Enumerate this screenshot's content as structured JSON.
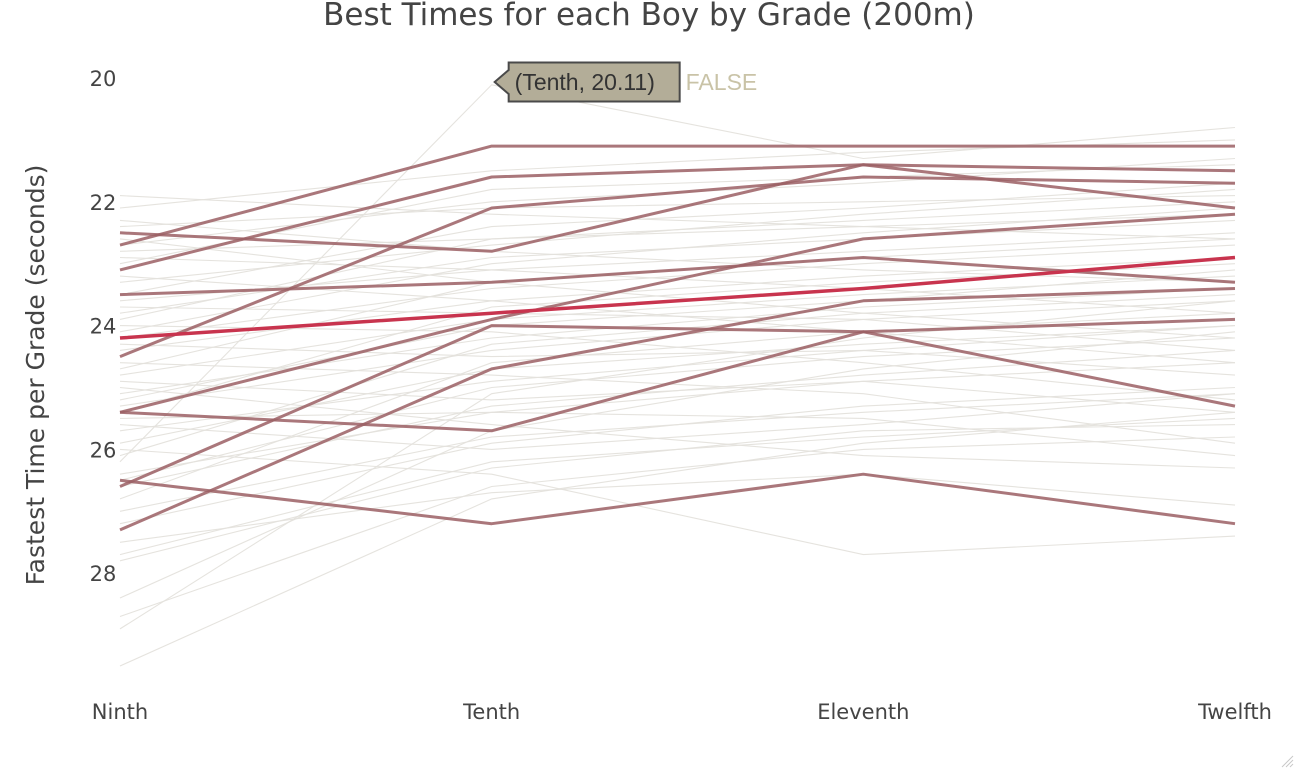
{
  "colors": {
    "background": "#ffffff",
    "background_lines": "#e4e2dc",
    "highlight_lines": "#9b5f64",
    "focus_line": "#c8344e",
    "tooltip_bg": "#b3ad98",
    "tooltip_border": "#4a4a4a",
    "tooltip_extra_text": "#c9c3a7"
  },
  "tooltip": {
    "label": "(Tenth, 20.11)",
    "extra": "FALSE",
    "point": {
      "x": "Tenth",
      "y": 20.11
    }
  },
  "chart_data": {
    "type": "line",
    "title": "Best Times for each Boy by Grade (200m)",
    "xlabel": "",
    "ylabel": "Fastest Time per Grade (seconds)",
    "categories": [
      "Ninth",
      "Tenth",
      "Eleventh",
      "Twelfth"
    ],
    "y_ticks": [
      20,
      22,
      24,
      26,
      28
    ],
    "ylim": [
      19.7,
      30.0
    ],
    "y_reversed": true,
    "grid": false,
    "legend": "none",
    "background_series": [
      [
        22.4,
        22.1,
        22.0,
        21.9
      ],
      [
        23.0,
        21.8,
        21.6,
        21.4
      ],
      [
        26.2,
        20.11,
        21.3,
        20.8
      ],
      [
        21.9,
        22.2,
        22.4,
        22.6
      ],
      [
        22.8,
        22.6,
        22.3,
        22.0
      ],
      [
        23.6,
        23.1,
        22.8,
        22.5
      ],
      [
        24.2,
        23.4,
        23.0,
        22.7
      ],
      [
        24.8,
        23.9,
        23.5,
        23.2
      ],
      [
        25.3,
        24.4,
        23.9,
        23.6
      ],
      [
        25.9,
        24.7,
        24.3,
        24.0
      ],
      [
        26.6,
        25.3,
        24.8,
        24.4
      ],
      [
        27.2,
        25.9,
        25.3,
        25.0
      ],
      [
        27.8,
        26.3,
        25.7,
        25.6
      ],
      [
        28.7,
        26.6,
        26.0,
        25.8
      ],
      [
        29.5,
        26.8,
        25.9,
        25.4
      ],
      [
        28.4,
        25.7,
        24.7,
        24.1
      ],
      [
        28.9,
        25.1,
        24.2,
        23.6
      ],
      [
        22.6,
        23.3,
        23.8,
        24.2
      ],
      [
        23.2,
        23.6,
        24.1,
        24.6
      ],
      [
        24.0,
        24.1,
        24.6,
        25.2
      ],
      [
        24.6,
        24.8,
        25.1,
        25.9
      ],
      [
        25.0,
        25.6,
        26.1,
        26.3
      ],
      [
        25.6,
        26.0,
        25.6,
        25.1
      ],
      [
        26.0,
        26.4,
        27.7,
        27.4
      ],
      [
        27.5,
        26.7,
        26.4,
        26.9
      ],
      [
        22.1,
        21.5,
        21.2,
        21.0
      ],
      [
        22.7,
        22.0,
        21.7,
        21.3
      ],
      [
        23.3,
        22.7,
        22.2,
        21.8
      ],
      [
        23.8,
        22.9,
        22.6,
        22.3
      ],
      [
        24.4,
        23.6,
        23.2,
        22.9
      ],
      [
        25.1,
        24.2,
        23.7,
        23.4
      ],
      [
        25.7,
        24.9,
        24.4,
        24.0
      ],
      [
        26.4,
        25.4,
        24.9,
        24.6
      ],
      [
        27.0,
        25.8,
        25.4,
        25.1
      ],
      [
        27.7,
        26.2,
        25.8,
        25.5
      ],
      [
        24.1,
        23.0,
        22.5,
        22.1
      ],
      [
        23.5,
        22.4,
        22.1,
        21.7
      ],
      [
        24.7,
        23.3,
        22.9,
        22.6
      ],
      [
        25.4,
        23.7,
        23.3,
        23.0
      ],
      [
        26.1,
        24.3,
        23.8,
        23.5
      ],
      [
        26.8,
        24.6,
        24.1,
        23.8
      ],
      [
        22.9,
        23.1,
        23.4,
        23.8
      ],
      [
        23.7,
        23.8,
        23.9,
        24.4
      ],
      [
        24.3,
        24.5,
        24.4,
        24.8
      ],
      [
        24.9,
        25.2,
        24.9,
        25.4
      ],
      [
        25.5,
        25.4,
        25.5,
        26.1
      ],
      [
        22.3,
        22.8,
        23.1,
        23.3
      ],
      [
        23.9,
        22.6,
        22.4,
        22.2
      ],
      [
        25.2,
        24.0,
        23.6,
        23.1
      ],
      [
        26.5,
        25.0,
        24.5,
        24.2
      ]
    ],
    "highlight_series": [
      [
        22.7,
        21.1,
        21.1,
        21.1
      ],
      [
        23.1,
        21.6,
        21.4,
        21.5
      ],
      [
        22.5,
        22.8,
        21.4,
        22.1
      ],
      [
        24.5,
        22.1,
        21.6,
        21.7
      ],
      [
        23.5,
        23.3,
        22.9,
        23.3
      ],
      [
        25.4,
        23.9,
        22.6,
        22.2
      ],
      [
        26.6,
        24.0,
        24.1,
        25.3
      ],
      [
        25.4,
        25.7,
        24.1,
        23.9
      ],
      [
        27.3,
        24.7,
        23.6,
        23.4
      ],
      [
        26.5,
        27.2,
        26.4,
        27.2
      ]
    ],
    "focus_series": [
      24.2,
      23.8,
      23.4,
      22.9
    ]
  }
}
